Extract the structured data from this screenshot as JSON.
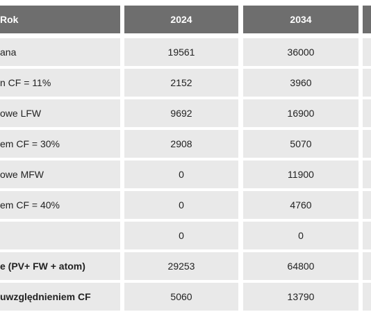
{
  "table": {
    "header": {
      "label": "Rok",
      "years": [
        "2024",
        "2034"
      ]
    },
    "rows": [
      {
        "label": "ana",
        "y2024": "19561",
        "y2034": "36000",
        "bold": false
      },
      {
        "label": "n CF = 11%",
        "y2024": "2152",
        "y2034": "3960",
        "bold": false
      },
      {
        "label": "owe LFW",
        "y2024": "9692",
        "y2034": "16900",
        "bold": false
      },
      {
        "label": "em CF = 30%",
        "y2024": "2908",
        "y2034": "5070",
        "bold": false
      },
      {
        "label": "owe MFW",
        "y2024": "0",
        "y2034": "11900",
        "bold": false
      },
      {
        "label": "em CF = 40%",
        "y2024": "0",
        "y2034": "4760",
        "bold": false
      },
      {
        "label": "",
        "y2024": "0",
        "y2034": "0",
        "bold": false
      },
      {
        "label": "e (PV+ FW + atom)",
        "y2024": "29253",
        "y2034": "64800",
        "bold": true
      },
      {
        "label": "uwzględnieniem CF",
        "y2024": "5060",
        "y2034": "13790",
        "bold": true
      }
    ]
  },
  "colors": {
    "header_bg": "#6e6e6e",
    "header_text": "#ffffff",
    "cell_bg": "#e9e9e9",
    "cell_text": "#222222"
  }
}
